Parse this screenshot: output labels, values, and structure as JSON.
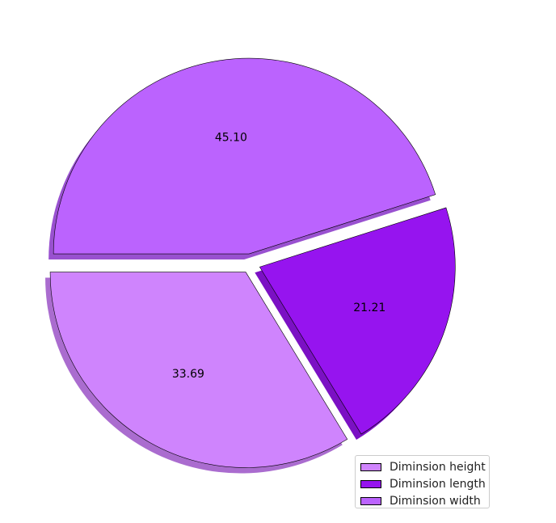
{
  "chart_data": {
    "type": "pie",
    "start_angle": 180,
    "direction": "counterclockwise",
    "shadow": true,
    "explode": [
      0.05,
      0.05,
      0.05
    ],
    "slices": [
      {
        "label": "Diminsion height",
        "value": 33.69,
        "pct_label": "33.69",
        "color": "#cf84fd"
      },
      {
        "label": "Diminsion length",
        "value": 21.21,
        "pct_label": "21.21",
        "color": "#9614ef"
      },
      {
        "label": "Diminsion width",
        "value": 45.1,
        "pct_label": "45.10",
        "color": "#bb63fe"
      }
    ],
    "legend": {
      "position": "lower-right",
      "entries": [
        "Diminsion height",
        "Diminsion length",
        "Diminsion width"
      ]
    }
  }
}
